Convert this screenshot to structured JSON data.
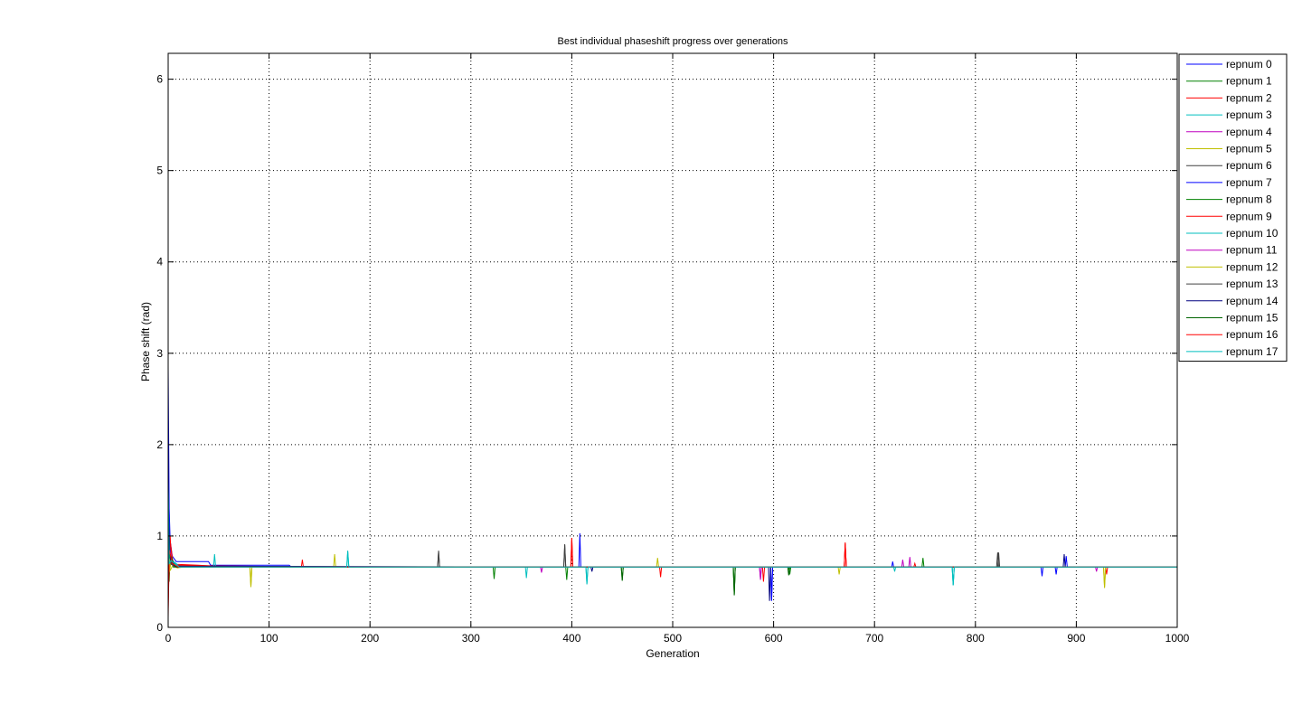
{
  "chart_data": {
    "type": "line",
    "title": "Best individual phaseshift progress over generations",
    "xlabel": "Generation",
    "ylabel": "Phase shift (rad)",
    "xlim": [
      0,
      1000
    ],
    "ylim": [
      0,
      6.283
    ],
    "xticks": [
      "0",
      "100",
      "200",
      "300",
      "400",
      "500",
      "600",
      "700",
      "800",
      "900",
      "1000"
    ],
    "yticks": [
      "0",
      "1",
      "2",
      "3",
      "4",
      "5",
      "6"
    ],
    "grid": true,
    "legend_position": "outside-top-right",
    "baseline": 0.66,
    "series": [
      {
        "name": "repnum 0",
        "color": "#0000ff",
        "early": [
          [
            0,
            2.85
          ],
          [
            1,
            1.3
          ],
          [
            2,
            0.95
          ],
          [
            4,
            0.78
          ],
          [
            8,
            0.72
          ],
          [
            40,
            0.72
          ],
          [
            42,
            0.68
          ],
          [
            120,
            0.68
          ],
          [
            122,
            0.66
          ]
        ],
        "spikes": [
          [
            408,
            1.03
          ],
          [
            598,
            0.29
          ],
          [
            890,
            0.78
          ],
          [
            880,
            0.58
          ]
        ]
      },
      {
        "name": "repnum 1",
        "color": "#008000",
        "early": [
          [
            0,
            1.2
          ],
          [
            1,
            0.5
          ],
          [
            2,
            0.8
          ],
          [
            5,
            0.7
          ],
          [
            15,
            0.66
          ]
        ],
        "spikes": [
          [
            395,
            0.52
          ],
          [
            450,
            0.52
          ],
          [
            561,
            0.36
          ],
          [
            616,
            0.58
          ]
        ]
      },
      {
        "name": "repnum 2",
        "color": "#ff0000",
        "early": [
          [
            0,
            0.1
          ],
          [
            1,
            0.9
          ],
          [
            2,
            1.0
          ],
          [
            3,
            0.75
          ],
          [
            8,
            0.69
          ],
          [
            30,
            0.68
          ],
          [
            60,
            0.66
          ]
        ],
        "spikes": [
          [
            400,
            0.98
          ],
          [
            671,
            0.91
          ],
          [
            488,
            0.55
          ],
          [
            930,
            0.58
          ]
        ]
      },
      {
        "name": "repnum 3",
        "color": "#00bfbf",
        "early": [
          [
            0,
            1.4
          ],
          [
            1,
            0.6
          ],
          [
            3,
            0.74
          ],
          [
            10,
            0.68
          ],
          [
            25,
            0.66
          ]
        ],
        "spikes": [
          [
            178,
            0.83
          ],
          [
            415,
            0.48
          ],
          [
            778,
            0.47
          ],
          [
            720,
            0.61
          ]
        ]
      },
      {
        "name": "repnum 4",
        "color": "#bf00bf",
        "early": [
          [
            0,
            0.5
          ],
          [
            2,
            0.85
          ],
          [
            4,
            0.7
          ],
          [
            12,
            0.67
          ]
        ],
        "spikes": [
          [
            587,
            0.52
          ],
          [
            735,
            0.77
          ],
          [
            370,
            0.6
          ]
        ]
      },
      {
        "name": "repnum 5",
        "color": "#bfbf00",
        "early": [
          [
            0,
            0.9
          ],
          [
            1,
            0.6
          ],
          [
            3,
            0.72
          ],
          [
            9,
            0.65
          ],
          [
            20,
            0.67
          ]
        ],
        "spikes": [
          [
            82,
            0.44
          ],
          [
            165,
            0.8
          ],
          [
            928,
            0.43
          ],
          [
            485,
            0.76
          ]
        ]
      },
      {
        "name": "repnum 6",
        "color": "#404040",
        "early": [
          [
            0,
            1.0
          ],
          [
            2,
            0.7
          ],
          [
            6,
            0.67
          ]
        ],
        "spikes": [
          [
            268,
            0.83
          ],
          [
            393,
            0.91
          ],
          [
            822,
            0.82
          ]
        ]
      },
      {
        "name": "repnum 7",
        "color": "#0000ff",
        "early": [
          [
            0,
            1.7
          ],
          [
            1,
            0.8
          ],
          [
            3,
            0.7
          ],
          [
            7,
            0.68
          ],
          [
            18,
            0.66
          ]
        ],
        "spikes": [
          [
            598,
            0.3
          ],
          [
            866,
            0.56
          ],
          [
            718,
            0.72
          ]
        ]
      },
      {
        "name": "repnum 8",
        "color": "#008000",
        "early": [
          [
            0,
            0.6
          ],
          [
            2,
            0.75
          ],
          [
            5,
            0.66
          ]
        ],
        "spikes": [
          [
            323,
            0.53
          ],
          [
            561,
            0.37
          ],
          [
            748,
            0.76
          ]
        ]
      },
      {
        "name": "repnum 9",
        "color": "#ff0000",
        "early": [
          [
            0,
            0.2
          ],
          [
            1,
            0.7
          ],
          [
            2,
            0.95
          ],
          [
            5,
            0.68
          ]
        ],
        "spikes": [
          [
            671,
            0.93
          ],
          [
            590,
            0.5
          ],
          [
            133,
            0.74
          ]
        ]
      },
      {
        "name": "repnum 10",
        "color": "#00bfbf",
        "early": [
          [
            0,
            1.5
          ],
          [
            1,
            0.9
          ],
          [
            3,
            0.72
          ],
          [
            10,
            0.67
          ]
        ],
        "spikes": [
          [
            46,
            0.8
          ],
          [
            355,
            0.54
          ],
          [
            778,
            0.46
          ]
        ]
      },
      {
        "name": "repnum 11",
        "color": "#bf00bf",
        "early": [
          [
            0,
            0.8
          ],
          [
            2,
            0.7
          ],
          [
            8,
            0.66
          ]
        ],
        "spikes": [
          [
            587,
            0.53
          ],
          [
            920,
            0.61
          ],
          [
            728,
            0.74
          ]
        ]
      },
      {
        "name": "repnum 12",
        "color": "#bfbf00",
        "early": [
          [
            0,
            1.1
          ],
          [
            2,
            0.62
          ],
          [
            5,
            0.69
          ],
          [
            12,
            0.66
          ]
        ],
        "spikes": [
          [
            82,
            0.45
          ],
          [
            665,
            0.58
          ],
          [
            928,
            0.44
          ]
        ]
      },
      {
        "name": "repnum 13",
        "color": "#404040",
        "early": [
          [
            0,
            0.9
          ],
          [
            3,
            0.69
          ],
          [
            9,
            0.66
          ]
        ],
        "spikes": [
          [
            268,
            0.84
          ],
          [
            393,
            0.9
          ],
          [
            823,
            0.82
          ]
        ]
      },
      {
        "name": "repnum 14",
        "color": "#000080",
        "early": [
          [
            0,
            1.3
          ],
          [
            2,
            0.76
          ],
          [
            6,
            0.67
          ]
        ],
        "spikes": [
          [
            596,
            0.29
          ],
          [
            888,
            0.8
          ],
          [
            420,
            0.61
          ]
        ]
      },
      {
        "name": "repnum 15",
        "color": "#006400",
        "early": [
          [
            0,
            0.7
          ],
          [
            2,
            0.8
          ],
          [
            7,
            0.66
          ]
        ],
        "spikes": [
          [
            561,
            0.35
          ],
          [
            450,
            0.51
          ],
          [
            615,
            0.57
          ]
        ]
      },
      {
        "name": "repnum 16",
        "color": "#ff0000",
        "early": [
          [
            0,
            0.3
          ],
          [
            1,
            0.85
          ],
          [
            4,
            0.7
          ],
          [
            10,
            0.66
          ]
        ],
        "spikes": [
          [
            400,
            0.97
          ],
          [
            671,
            0.92
          ],
          [
            740,
            0.7
          ]
        ]
      },
      {
        "name": "repnum 17",
        "color": "#00bfbf",
        "early": [
          [
            0,
            1.6
          ],
          [
            1,
            0.7
          ],
          [
            3,
            0.73
          ],
          [
            11,
            0.66
          ]
        ],
        "spikes": [
          [
            178,
            0.84
          ],
          [
            415,
            0.47
          ],
          [
            778,
            0.46
          ]
        ]
      }
    ]
  }
}
